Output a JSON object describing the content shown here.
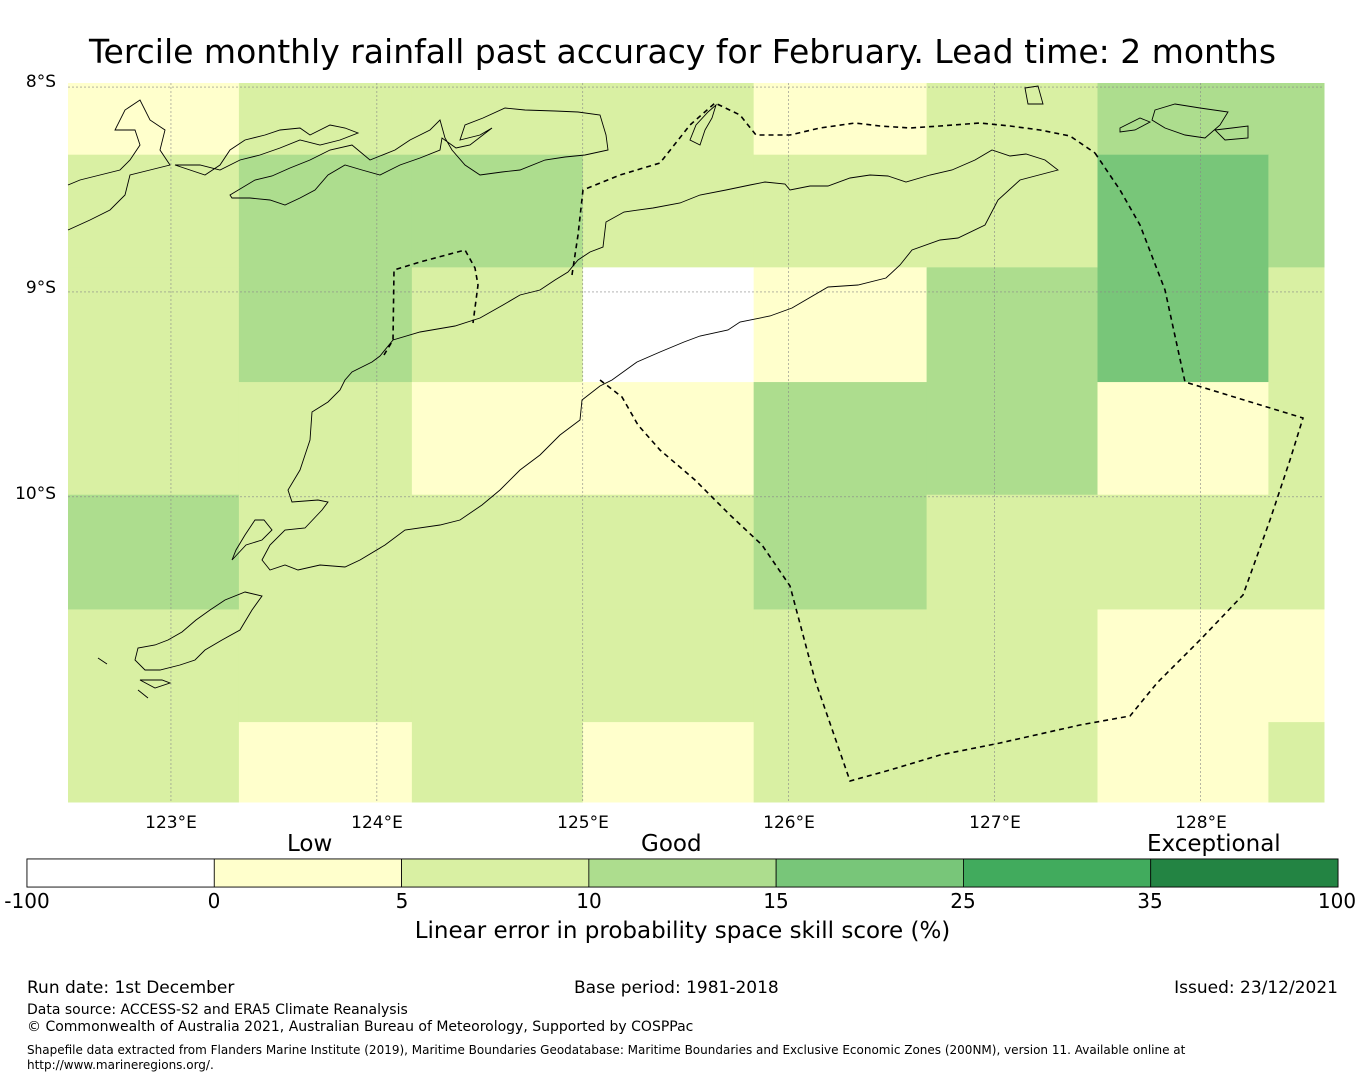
{
  "title": "Tercile monthly rainfall past accuracy for February. Lead time: 2 months",
  "axes": {
    "lat_labels": [
      "8°S",
      "9°S",
      "10°S"
    ],
    "lon_labels": [
      "123°E",
      "124°E",
      "125°E",
      "126°E",
      "127°E",
      "128°E"
    ]
  },
  "grid": {
    "lon_edges": [
      122.5,
      123.33,
      124.17,
      125.0,
      125.83,
      126.67,
      127.5,
      128.33,
      128.6
    ],
    "lat_edges": [
      -7.98,
      -8.33,
      -8.88,
      -9.44,
      -9.99,
      -10.55,
      -11.1,
      -11.49
    ],
    "values": [
      [
        3,
        6,
        6,
        6,
        3,
        6,
        12,
        12
      ],
      [
        6,
        12,
        12,
        6,
        6,
        6,
        17,
        12
      ],
      [
        6,
        12,
        6,
        -1,
        3,
        12,
        17,
        6
      ],
      [
        6,
        6,
        3,
        3,
        12,
        12,
        3,
        6
      ],
      [
        12,
        6,
        6,
        6,
        12,
        6,
        6,
        6
      ],
      [
        6,
        6,
        6,
        6,
        6,
        6,
        3,
        3
      ],
      [
        6,
        3,
        6,
        3,
        6,
        6,
        3,
        6
      ]
    ]
  },
  "colorbar": {
    "ticks": [
      "-100",
      "0",
      "5",
      "10",
      "15",
      "25",
      "35",
      "100"
    ],
    "colors": [
      "#ffffff",
      "#ffffcc",
      "#d9f0a3",
      "#addd8e",
      "#78c679",
      "#41ab5d",
      "#238443"
    ],
    "categories": [
      "Low",
      "Good",
      "Exceptional"
    ],
    "title": "Linear error in probability space skill score (%)"
  },
  "footer": {
    "run_date": "Run date: 1st December",
    "base_period": "Base period: 1981-2018",
    "issued": "Issued: 23/12/2021",
    "data_source": "Data source: ACCESS-S2 and ERA5 Climate Reanalysis",
    "copyright": "© Commonwealth of Australia 2021, Australian Bureau of Meteorology, Supported by COSPPac",
    "shapefile_line1": "Shapefile data extracted from Flanders Marine Institute (2019), Maritime Boundaries Geodatabase: Maritime Boundaries and Exclusive Economic Zones (200NM), version 11. Available online at",
    "shapefile_line2": "http://www.marineregions.org/."
  }
}
